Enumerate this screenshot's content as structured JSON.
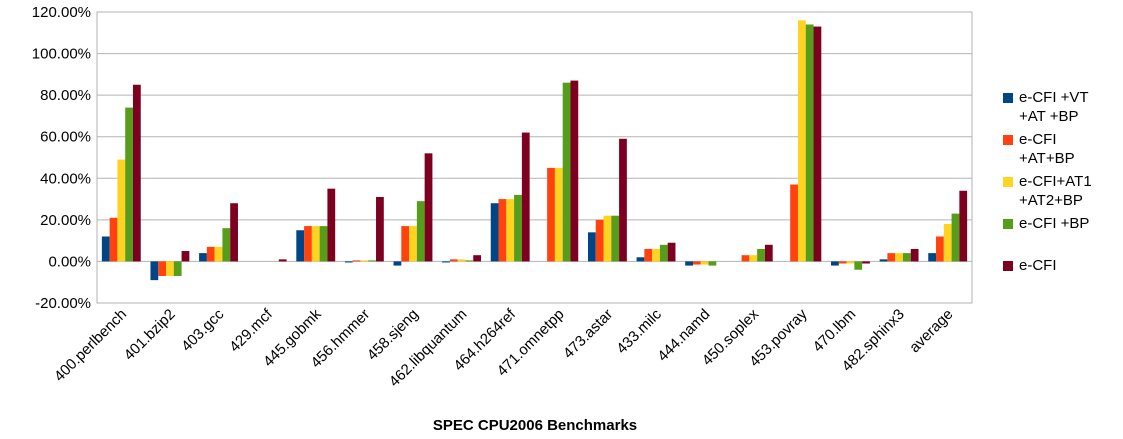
{
  "chart_data": {
    "type": "bar",
    "xlabel": "SPEC CPU2006 Benchmarks",
    "categories": [
      "400.perlbench",
      "401.bzip2",
      "403.gcc",
      "429.mcf",
      "445.gobmk",
      "456.hmmer",
      "458.sjeng",
      "462.libquantum",
      "464.h264ref",
      "471.omnetpp",
      "473.astar",
      "433.milc",
      "444.namd",
      "450.soplex",
      "453.povray",
      "470.lbm",
      "482.sphinx3",
      "average"
    ],
    "series": [
      {
        "name": "e-CFI +VT +AT +BP",
        "color": "#004586",
        "values": [
          12,
          -9,
          4,
          0,
          15,
          -0.5,
          -2,
          -0.5,
          28,
          0,
          14,
          2,
          -2,
          0,
          0,
          -2,
          1,
          4
        ]
      },
      {
        "name": "e-CFI +AT+BP",
        "color": "#ff420e",
        "values": [
          21,
          -7,
          7,
          0,
          17,
          0.5,
          17,
          1,
          30,
          45,
          20,
          6,
          -1.5,
          3,
          37,
          -1,
          4,
          12
        ]
      },
      {
        "name": "e-CFI+AT1 +AT2+BP",
        "color": "#ffd320",
        "values": [
          49,
          -7,
          7,
          0,
          17,
          0.5,
          17,
          1,
          30,
          45,
          22,
          6,
          -1.5,
          3,
          116,
          -1,
          4,
          18
        ]
      },
      {
        "name": "e-CFI +BP",
        "color": "#579d1c",
        "values": [
          74,
          -7,
          16,
          0,
          17,
          0.5,
          29,
          0.5,
          32,
          86,
          22,
          8,
          -2,
          6,
          114,
          -4,
          4,
          23
        ]
      },
      {
        "name": "e-CFI",
        "color": "#7e0021",
        "values": [
          85,
          5,
          28,
          1,
          35,
          31,
          52,
          3,
          62,
          87,
          59,
          9,
          0,
          8,
          113,
          -1,
          6,
          34
        ]
      }
    ],
    "ylim": [
      -20,
      120
    ],
    "yticks": [
      {
        "value": -20,
        "label": "-20.00%"
      },
      {
        "value": 0,
        "label": "0.00%"
      },
      {
        "value": 20,
        "label": "20.00%"
      },
      {
        "value": 40,
        "label": "40.00%"
      },
      {
        "value": 60,
        "label": "60.00%"
      },
      {
        "value": 80,
        "label": "80.00%"
      },
      {
        "value": 100,
        "label": "100.00%"
      },
      {
        "value": 120,
        "label": "120.00%"
      }
    ],
    "grid": true,
    "legend": "right"
  }
}
